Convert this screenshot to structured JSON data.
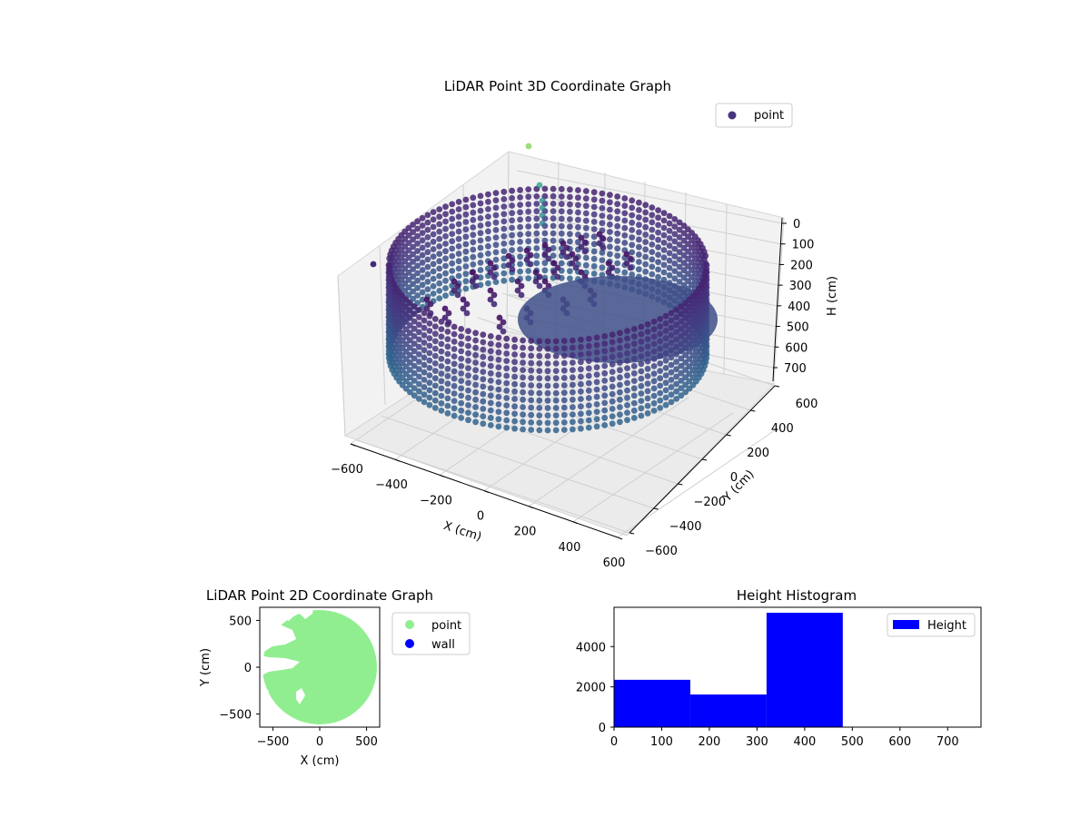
{
  "colors": {
    "pane_face": "#f2f2f2",
    "grid": "#d0d0d0",
    "point_3d": "#46327e",
    "point_2d": "#90ee90",
    "wall": "#0000ff",
    "hist_bar": "#0000ff"
  },
  "chart_data": [
    {
      "type": "scatter",
      "projection": "3d",
      "title": "LiDAR Point 3D Coordinate Graph",
      "xlabel": "X (cm)",
      "ylabel": "Y (cm)",
      "zlabel": "H (cm)",
      "xlim": [
        -600,
        600
      ],
      "ylim": [
        -600,
        600
      ],
      "zlim": [
        0,
        750
      ],
      "zaxis_inverted": true,
      "x_ticks": [
        "−600",
        "−400",
        "−200",
        "0",
        "200",
        "400",
        "600"
      ],
      "y_ticks": [
        "−600",
        "−400",
        "−200",
        "0",
        "200",
        "400",
        "600"
      ],
      "z_ticks": [
        "0",
        "100",
        "200",
        "300",
        "400",
        "500",
        "600",
        "700"
      ],
      "colormap": "viridis",
      "legend": [
        "point"
      ],
      "legend_position": "upper right",
      "grid": true,
      "structure": {
        "wall_radius_cm": 560,
        "wall_height_range_cm": [
          160,
          480
        ],
        "notes": "circular wall of points colored by height plus interior clutter near center"
      }
    },
    {
      "type": "scatter",
      "title": "LiDAR Point 2D Coordinate Graph",
      "xlabel": "X (cm)",
      "ylabel": "Y (cm)",
      "xlim": [
        -640,
        640
      ],
      "ylim": [
        -640,
        640
      ],
      "x_ticks": [
        "−500",
        "0",
        "500"
      ],
      "y_ticks": [
        "500",
        "0",
        "−500"
      ],
      "series": [
        {
          "name": "point",
          "color": "#90ee90",
          "region": "filled disk of radius ~600 cm with gaps on the left side"
        },
        {
          "name": "wall",
          "color": "#0000ff",
          "values": []
        }
      ],
      "legend_position": "outside right"
    },
    {
      "type": "bar",
      "title": "Height Histogram",
      "bin_edges": [
        0,
        160,
        320,
        480
      ],
      "values": [
        2350,
        1620,
        5680
      ],
      "xlim": [
        0,
        770
      ],
      "ylim": [
        0,
        5950
      ],
      "x_ticks": [
        "0",
        "100",
        "200",
        "300",
        "400",
        "500",
        "600",
        "700"
      ],
      "y_ticks": [
        "0",
        "2000",
        "4000"
      ],
      "series": [
        {
          "name": "Height",
          "color": "#0000ff"
        }
      ],
      "legend_position": "upper right"
    }
  ]
}
